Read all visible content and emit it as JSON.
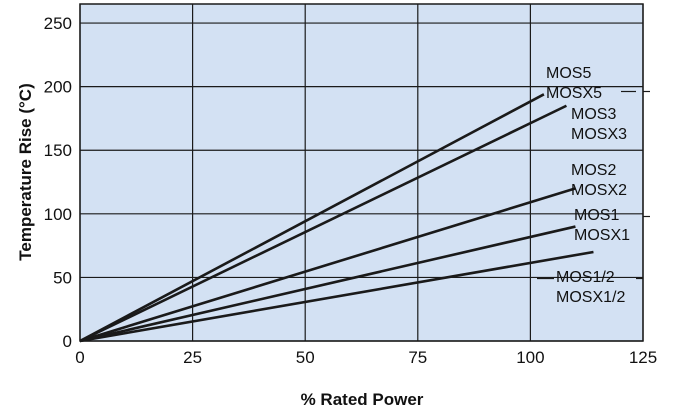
{
  "chart_data": {
    "type": "line",
    "title": "",
    "xlabel": "% Rated Power",
    "ylabel": "Temperature Rise (°C)",
    "xlim": [
      0,
      125
    ],
    "ylim": [
      0,
      265
    ],
    "x_ticks": [
      "0",
      "25",
      "50",
      "75",
      "100",
      "125"
    ],
    "y_ticks": [
      "0",
      "50",
      "100",
      "150",
      "200",
      "250"
    ],
    "grid": true,
    "background_color": "#d3e1f3",
    "line_color": "#1a1a1a",
    "series": [
      {
        "name": "MOS5",
        "x": [
          0,
          103
        ],
        "y": [
          0,
          194
        ]
      },
      {
        "name": "MOSX5",
        "x": [
          0,
          103
        ],
        "y": [
          0,
          194
        ]
      },
      {
        "name": "MOS3",
        "x": [
          0,
          108
        ],
        "y": [
          0,
          185
        ]
      },
      {
        "name": "MOSX3",
        "x": [
          0,
          108
        ],
        "y": [
          0,
          185
        ]
      },
      {
        "name": "MOS2",
        "x": [
          0,
          110
        ],
        "y": [
          0,
          120
        ]
      },
      {
        "name": "MOSX2",
        "x": [
          0,
          110
        ],
        "y": [
          0,
          120
        ]
      },
      {
        "name": "MOS1",
        "x": [
          0,
          110
        ],
        "y": [
          0,
          90
        ]
      },
      {
        "name": "MOSX1",
        "x": [
          0,
          110
        ],
        "y": [
          0,
          90
        ]
      },
      {
        "name": "MOS1/2",
        "x": [
          0,
          114
        ],
        "y": [
          0,
          70
        ]
      },
      {
        "name": "MOSX1/2",
        "x": [
          0,
          114
        ],
        "y": [
          0,
          70
        ]
      }
    ],
    "labels": [
      "MOS5",
      "MOSX5",
      "MOS3",
      "MOSX3",
      "MOS2",
      "MOSX2",
      "MOS1",
      "MOSX1",
      "MOS1/2",
      "MOSX1/2"
    ]
  }
}
